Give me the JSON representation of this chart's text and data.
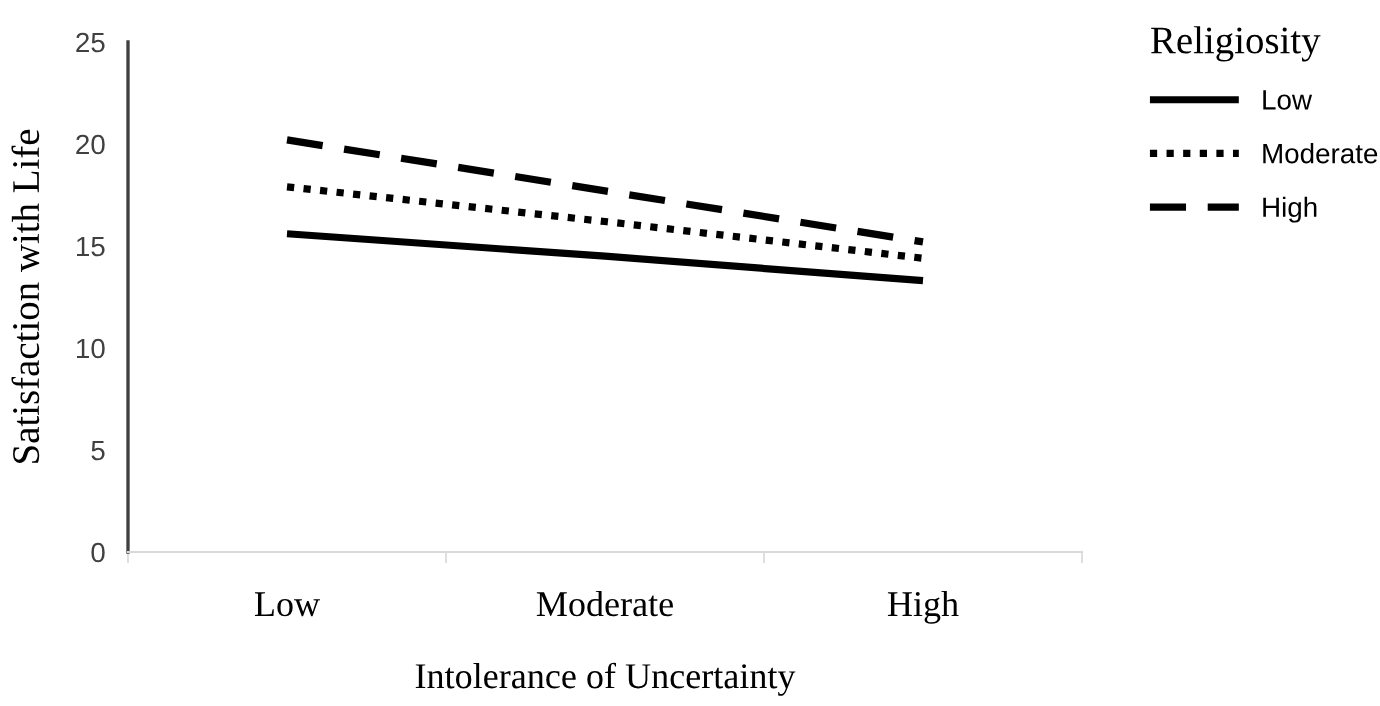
{
  "chart_data": {
    "type": "line",
    "xlabel": "Intolerance of Uncertainty",
    "ylabel": "Satisfaction with Life",
    "legend_title": "Religiosity",
    "categories": [
      "Low",
      "Moderate",
      "High"
    ],
    "series": [
      {
        "name": "Low",
        "color": "#000000",
        "line_style": "solid",
        "values": [
          15.6,
          14.5,
          13.3
        ]
      },
      {
        "name": "Moderate",
        "color": "#000000",
        "line_style": "dotted",
        "values": [
          17.9,
          16.2,
          14.4
        ]
      },
      {
        "name": "High",
        "color": "#000000",
        "line_style": "dashed",
        "values": [
          20.2,
          17.7,
          15.2
        ]
      }
    ],
    "ylim": [
      0,
      25
    ],
    "yticks": [
      0,
      5,
      10,
      15,
      20,
      25
    ],
    "grid": false,
    "legend": "top right",
    "marker": "none"
  }
}
